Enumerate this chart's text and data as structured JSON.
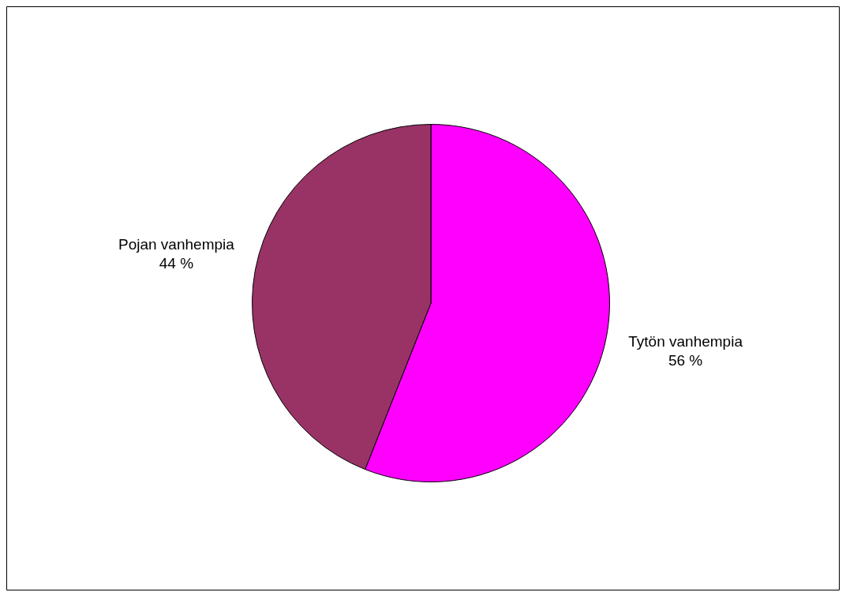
{
  "chart_data": {
    "type": "pie",
    "categories": [
      "Tytön vanhempia",
      "Pojan vanhempia"
    ],
    "values": [
      56,
      44
    ],
    "colors": [
      "#ff00ff",
      "#993366"
    ],
    "value_labels": [
      "56 %",
      "44 %"
    ],
    "legend": false
  }
}
